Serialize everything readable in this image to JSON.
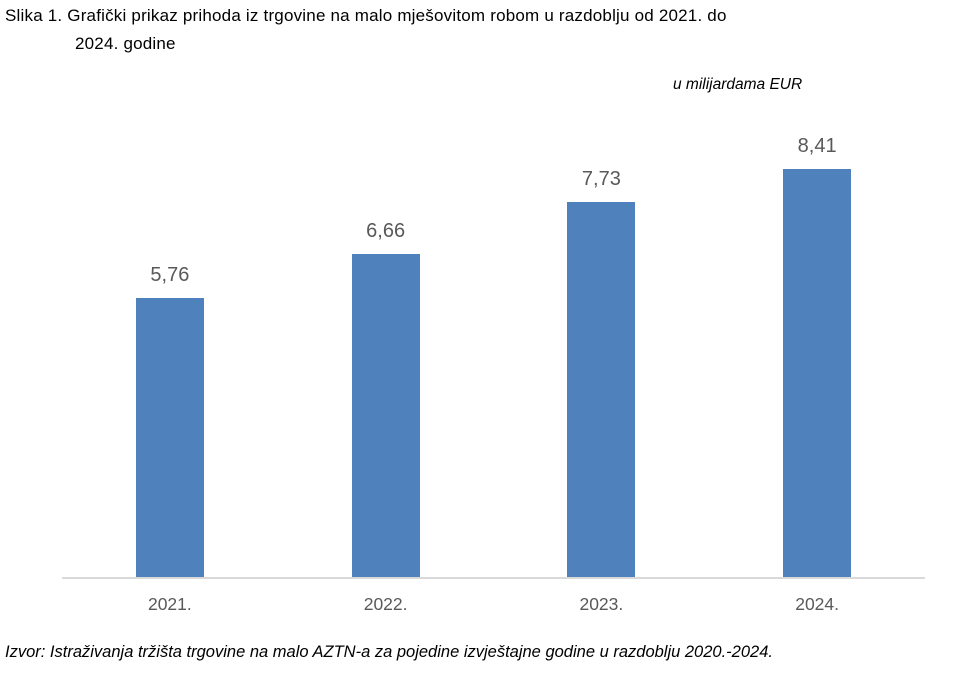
{
  "figure": {
    "caption_line1": "Slika 1. Grafički prikaz prihoda iz trgovine na malo mješovitom robom u razdoblju od 2021. do",
    "caption_line2": "2024. godine",
    "unit_label": "u milijardama EUR",
    "source": "Izvor: Istraživanja tržišta trgovine na malo AZTN-a za pojedine izvještajne godine u razdoblju 2020.-2024."
  },
  "chart_data": {
    "type": "bar",
    "title": "Slika 1. Grafički prikaz prihoda iz trgovine na malo mješovitom robom u razdoblju od 2021. do 2024. godine",
    "unit": "u milijardama EUR",
    "categories": [
      "2021.",
      "2022.",
      "2023.",
      "2024."
    ],
    "values": [
      5.76,
      6.66,
      7.73,
      8.41
    ],
    "value_labels": [
      "5,76",
      "6,66",
      "7,73",
      "8,41"
    ],
    "ylim": [
      0,
      9.6
    ],
    "grid": false,
    "legend": "none",
    "bar_color": "#4F81BD",
    "value_label_color": "#595959",
    "axis_label_color": "#595959",
    "axis_line_color": "#D9D9D9",
    "source": "Izvor: Istraživanja tržišta trgovine na malo AZTN-a za pojedine izvještajne godine u razdoblju 2020.-2024."
  }
}
